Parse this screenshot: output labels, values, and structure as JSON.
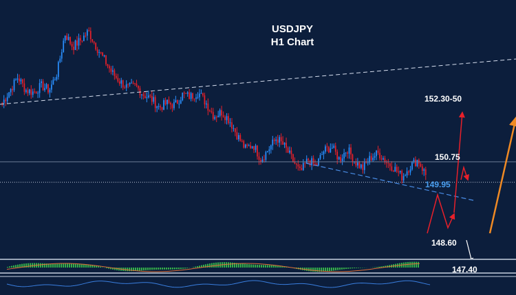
{
  "chart_data": {
    "type": "candlestick",
    "title": "USDJPY",
    "subtitle": "H1 Chart",
    "symbol": "USDJPY",
    "timeframe": "H1",
    "y_range": [
      147.1,
      152.5
    ],
    "colors": {
      "background": "#0c1e3c",
      "bull_candle": "#2a90ff",
      "bear_candle": "#e8202a",
      "trendline_long": "#d8e0f0",
      "trendline_short": "#4a8ee8",
      "arrow_red": "#e8202a",
      "arrow_orange": "#f08a24",
      "arrow_white": "#ffffff",
      "macd_hist": "#35b04a",
      "macd_signal": "#e0703a"
    },
    "price_path": [
      150.6,
      150.9,
      151.2,
      150.9,
      150.85,
      151.0,
      150.9,
      151.3,
      152.2,
      151.9,
      152.05,
      152.25,
      151.9,
      151.6,
      151.3,
      151.1,
      150.95,
      151.0,
      150.8,
      150.7,
      150.5,
      150.6,
      150.55,
      150.8,
      150.75,
      150.85,
      150.6,
      150.3,
      150.4,
      150.2,
      149.85,
      149.55,
      149.65,
      149.3,
      149.55,
      149.8,
      149.6,
      149.3,
      149.0,
      149.3,
      149.15,
      149.5,
      149.6,
      149.3,
      149.55,
      149.25,
      149.1,
      149.35,
      149.45,
      149.25,
      149.1,
      148.9,
      149.15,
      149.3,
      148.95
    ],
    "levels": [
      {
        "label": "152.30-50",
        "value": 152.4,
        "color": "#ffffff"
      },
      {
        "label": "150.75",
        "value": 150.75,
        "color": "#ffffff"
      },
      {
        "label": "149.95",
        "value": 149.95,
        "color": "#4a9ff0"
      },
      {
        "label": "148.60",
        "value": 148.6,
        "color": "#ffffff"
      },
      {
        "label": "147.40",
        "value": 147.4,
        "color": "#ffffff"
      }
    ],
    "horizontal_lines": [
      {
        "value": 149.25,
        "style": "solid",
        "color": "#6d7d96"
      },
      {
        "value": 148.78,
        "style": "dotted",
        "color": "#b9c3d4"
      }
    ],
    "indicator": "MACD",
    "grid": false,
    "legend": "none"
  }
}
